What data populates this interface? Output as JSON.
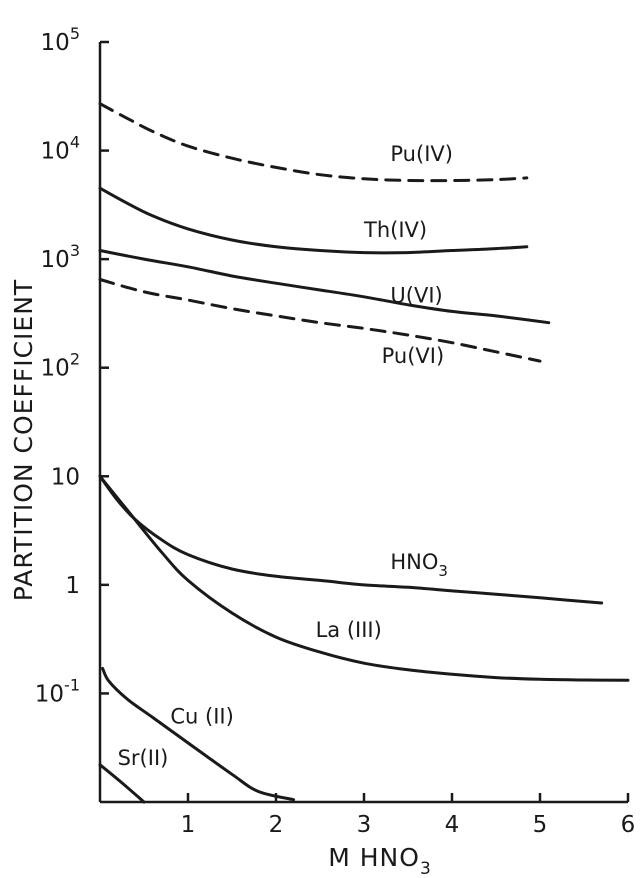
{
  "chart_data": {
    "type": "line",
    "title": "",
    "xlabel": "M HNO3",
    "ylabel": "PARTITION COEFFICIENT",
    "xlim": [
      0,
      6
    ],
    "ylim": [
      0.01,
      100000
    ],
    "y_scale": "log",
    "grid": false,
    "x_ticks": [
      "1",
      "2",
      "3",
      "4",
      "5",
      "6"
    ],
    "y_ticks": [
      {
        "value": 100000,
        "base": "10",
        "exp": "5"
      },
      {
        "value": 10000,
        "base": "10",
        "exp": "4"
      },
      {
        "value": 1000,
        "base": "10",
        "exp": "3"
      },
      {
        "value": 100,
        "base": "10",
        "exp": "2"
      },
      {
        "value": 10,
        "base": "10",
        "exp": ""
      },
      {
        "value": 1,
        "base": "1",
        "exp": ""
      },
      {
        "value": 0.1,
        "base": "10",
        "exp": "-1"
      }
    ],
    "series": [
      {
        "name": "Pu(IV)",
        "style": "dashed",
        "label_at": [
          3.3,
          8000
        ],
        "x": [
          0,
          0.3,
          0.6,
          1.0,
          1.5,
          2.0,
          2.5,
          3.0,
          3.5,
          4.0,
          4.5,
          4.85
        ],
        "y": [
          27000,
          20000,
          15000,
          11000,
          8500,
          7000,
          6000,
          5500,
          5300,
          5300,
          5400,
          5600
        ]
      },
      {
        "name": "Th(IV)",
        "style": "solid",
        "label_at": [
          3.0,
          1600
        ],
        "x": [
          0,
          0.3,
          0.6,
          1.0,
          1.5,
          2.0,
          2.5,
          3.0,
          3.5,
          4.0,
          4.5,
          4.85
        ],
        "y": [
          4500,
          3300,
          2500,
          1900,
          1500,
          1300,
          1200,
          1150,
          1150,
          1200,
          1250,
          1300
        ]
      },
      {
        "name": "U(VI)",
        "style": "solid",
        "label_at": [
          3.3,
          400
        ],
        "x": [
          0,
          0.5,
          1.0,
          1.5,
          2.0,
          2.5,
          3.0,
          3.5,
          4.0,
          4.5,
          5.1
        ],
        "y": [
          1200,
          1000,
          850,
          700,
          600,
          520,
          450,
          380,
          330,
          300,
          260
        ]
      },
      {
        "name": "Pu(VI)",
        "style": "dashed",
        "label_at": [
          3.2,
          110
        ],
        "x": [
          0,
          0.5,
          1.0,
          1.5,
          2.0,
          2.5,
          3.0,
          3.5,
          4.0,
          4.5,
          5.0
        ],
        "y": [
          650,
          500,
          420,
          350,
          300,
          260,
          230,
          200,
          170,
          140,
          115
        ]
      },
      {
        "name": "HNO3",
        "style": "solid",
        "label_at": [
          3.3,
          1.4
        ],
        "x": [
          0,
          0.2,
          0.4,
          0.7,
          1.0,
          1.5,
          2.0,
          2.5,
          3.0,
          3.5,
          4.0,
          4.5,
          5.0,
          5.7
        ],
        "y": [
          10,
          6,
          4,
          2.6,
          1.9,
          1.4,
          1.2,
          1.1,
          1.0,
          0.95,
          0.88,
          0.82,
          0.76,
          0.68
        ]
      },
      {
        "name": "La (III)",
        "style": "solid",
        "label_at": [
          2.45,
          0.33
        ],
        "x": [
          0,
          0.3,
          0.7,
          1.0,
          1.5,
          2.0,
          2.5,
          3.0,
          3.5,
          4.0,
          4.5,
          5.0,
          5.5,
          6.0
        ],
        "y": [
          10,
          5,
          2,
          1.1,
          0.55,
          0.33,
          0.24,
          0.19,
          0.165,
          0.15,
          0.14,
          0.135,
          0.133,
          0.132
        ]
      },
      {
        "name": "Cu (II)",
        "style": "solid",
        "label_at": [
          0.8,
          0.053
        ],
        "x": [
          0.03,
          0.1,
          0.3,
          0.6,
          1.0,
          1.5,
          1.8,
          2.2
        ],
        "y": [
          0.17,
          0.13,
          0.09,
          0.06,
          0.035,
          0.018,
          0.0125,
          0.0105
        ]
      },
      {
        "name": "Sr(II)",
        "style": "solid",
        "label_at": [
          0.2,
          0.022
        ],
        "x": [
          0,
          0.25,
          0.5
        ],
        "y": [
          0.022,
          0.015,
          0.01
        ]
      }
    ]
  }
}
